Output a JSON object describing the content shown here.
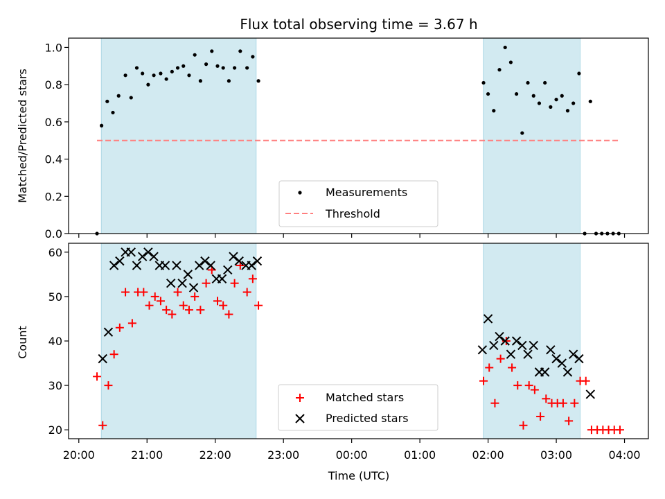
{
  "chart_data": [
    {
      "type": "scatter",
      "panel": "top",
      "title": "Flux total observing time = 3.67 h",
      "xlabel": "",
      "ylabel": "Matched/Predicted stars",
      "ylim": [
        0,
        1.05
      ],
      "yticks": [
        "0.0",
        "0.2",
        "0.4",
        "0.6",
        "0.8",
        "1.0"
      ],
      "xlim_hours": [
        -4.15,
        4.35
      ],
      "shaded_intervals_hours": [
        [
          -3.67,
          -1.4
        ],
        [
          1.93,
          3.35
        ]
      ],
      "shade_color": "#add8e6",
      "grid": false,
      "legend_position": "lower center",
      "series": [
        {
          "name": "Measurements",
          "marker": "dot",
          "color": "#000000",
          "x": [
            "20:16",
            "20:20",
            "20:25",
            "20:30",
            "20:35",
            "20:41",
            "20:46",
            "20:51",
            "20:56",
            "21:01",
            "21:06",
            "21:12",
            "21:17",
            "21:22",
            "21:27",
            "21:32",
            "21:37",
            "21:42",
            "21:47",
            "21:52",
            "21:57",
            "22:02",
            "22:07",
            "22:12",
            "22:17",
            "22:22",
            "22:28",
            "22:33",
            "22:38",
            "01:56",
            "02:00",
            "02:05",
            "02:10",
            "02:15",
            "02:20",
            "02:25",
            "02:30",
            "02:35",
            "02:40",
            "02:45",
            "02:50",
            "02:55",
            "03:00",
            "03:05",
            "03:10",
            "03:15",
            "03:20",
            "03:25",
            "03:30",
            "03:35",
            "03:40",
            "03:45",
            "03:50",
            "03:55"
          ],
          "y": [
            0.0,
            0.58,
            0.71,
            0.65,
            0.74,
            0.85,
            0.73,
            0.89,
            0.86,
            0.8,
            0.85,
            0.86,
            0.83,
            0.87,
            0.89,
            0.9,
            0.85,
            0.96,
            0.82,
            0.91,
            0.98,
            0.9,
            0.89,
            0.82,
            0.89,
            0.98,
            0.89,
            0.95,
            0.82,
            0.81,
            0.75,
            0.66,
            0.88,
            1.0,
            0.92,
            0.75,
            0.54,
            0.81,
            0.74,
            0.7,
            0.81,
            0.68,
            0.72,
            0.74,
            0.66,
            0.7,
            0.86,
            0.0,
            0.71,
            0.0,
            0.0,
            0.0,
            0.0,
            0.0
          ]
        },
        {
          "name": "Threshold",
          "style": "dashed",
          "color": "#ff7f7f",
          "x": [
            "20:16",
            "03:55"
          ],
          "y": [
            0.5,
            0.5
          ]
        }
      ]
    },
    {
      "type": "scatter",
      "panel": "bottom",
      "xlabel": "Time (UTC)",
      "ylabel": "Count",
      "ylim": [
        18,
        62
      ],
      "yticks": [
        "20",
        "30",
        "40",
        "50",
        "60"
      ],
      "xticks": [
        "20:00",
        "21:00",
        "22:00",
        "23:00",
        "00:00",
        "01:00",
        "02:00",
        "03:00",
        "04:00"
      ],
      "xlim_hours": [
        -4.15,
        4.35
      ],
      "shaded_intervals_hours": [
        [
          -3.67,
          -1.4
        ],
        [
          1.93,
          3.35
        ]
      ],
      "shade_color": "#add8e6",
      "grid": false,
      "legend_position": "lower center",
      "series": [
        {
          "name": "Matched stars",
          "marker": "plus",
          "color": "#ff0000",
          "x": [
            "20:16",
            "20:21",
            "20:26",
            "20:31",
            "20:36",
            "20:41",
            "20:47",
            "20:52",
            "20:57",
            "21:02",
            "21:07",
            "21:12",
            "21:17",
            "21:22",
            "21:27",
            "21:32",
            "21:37",
            "21:42",
            "21:47",
            "21:52",
            "21:57",
            "22:02",
            "22:07",
            "22:12",
            "22:17",
            "22:22",
            "22:28",
            "22:33",
            "22:38",
            "01:56",
            "02:01",
            "02:06",
            "02:11",
            "02:16",
            "02:21",
            "02:26",
            "02:31",
            "02:36",
            "02:41",
            "02:46",
            "02:51",
            "02:56",
            "03:01",
            "03:06",
            "03:11",
            "03:16",
            "03:21",
            "03:26",
            "03:31",
            "03:36",
            "03:41",
            "03:46",
            "03:51",
            "03:56"
          ],
          "y": [
            32,
            21,
            30,
            37,
            43,
            51,
            44,
            51,
            51,
            48,
            50,
            49,
            47,
            46,
            51,
            48,
            47,
            50,
            47,
            53,
            56,
            49,
            48,
            46,
            53,
            57,
            51,
            54,
            48,
            31,
            34,
            26,
            36,
            40,
            34,
            30,
            21,
            30,
            29,
            23,
            27,
            26,
            26,
            26,
            22,
            26,
            31,
            31,
            20,
            20,
            20,
            20,
            20,
            20
          ]
        },
        {
          "name": "Predicted stars",
          "marker": "x",
          "color": "#000000",
          "x": [
            "20:21",
            "20:26",
            "20:31",
            "20:36",
            "20:41",
            "20:46",
            "20:51",
            "20:56",
            "21:01",
            "21:06",
            "21:11",
            "21:16",
            "21:21",
            "21:26",
            "21:31",
            "21:36",
            "21:41",
            "21:46",
            "21:51",
            "21:56",
            "22:01",
            "22:06",
            "22:11",
            "22:16",
            "22:21",
            "22:27",
            "22:32",
            "22:37",
            "01:55",
            "02:00",
            "02:05",
            "02:10",
            "02:15",
            "02:20",
            "02:25",
            "02:30",
            "02:35",
            "02:40",
            "02:45",
            "02:50",
            "02:55",
            "03:00",
            "03:05",
            "03:10",
            "03:15",
            "03:20",
            "03:30"
          ],
          "y": [
            36,
            42,
            57,
            58,
            60,
            60,
            57,
            59,
            60,
            59,
            57,
            57,
            53,
            57,
            53,
            55,
            52,
            57,
            58,
            57,
            54,
            54,
            56,
            59,
            58,
            57,
            57,
            58,
            38,
            45,
            39,
            41,
            40,
            37,
            40,
            39,
            37,
            39,
            33,
            33,
            38,
            36,
            35,
            33,
            37,
            36,
            28
          ]
        }
      ]
    }
  ]
}
